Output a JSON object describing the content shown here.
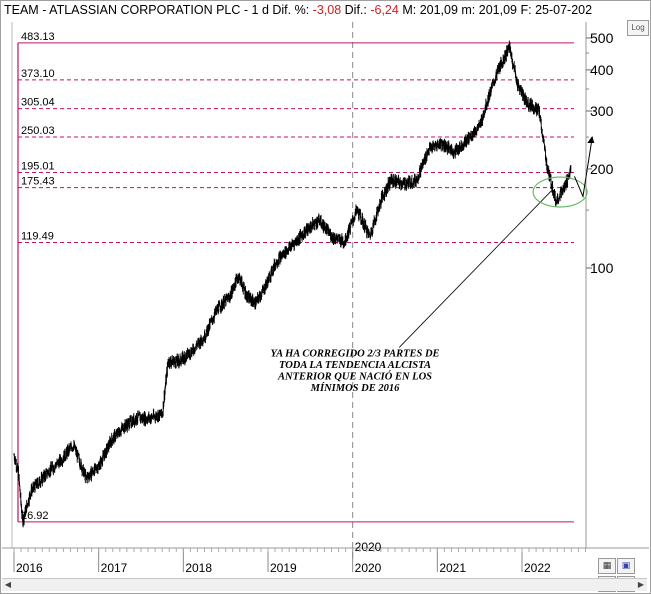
{
  "header": {
    "symbol": "TEAM",
    "sep1": " - ",
    "name": "ATLASSIAN CORPORATION PLC",
    "sep2": " -  ",
    "period": "1 d",
    "dif_pct_label": " Dif. %: ",
    "dif_pct_value": "-3,08",
    "dif_label": " Dif.: ",
    "dif_value": "-6,24",
    "max_label": " M: ",
    "max_value": "201,09",
    "min_label": " m: ",
    "min_value": "201,09",
    "date_label": " F: ",
    "date_value": "25-07-202"
  },
  "log_button": "Log",
  "toolbar_icons": [
    "palette-icon",
    "save-icon",
    "pin-icon",
    "scroll-end-icon"
  ],
  "colors": {
    "level_line": "#c0106e",
    "candles": "#000000",
    "ellipse": "#5cb85c",
    "projection": "#000000"
  },
  "chart_data": {
    "type": "candlestick",
    "y_scale": "log",
    "ylim": [
      10,
      500
    ],
    "y_ticks": [
      100,
      200,
      300,
      400,
      500
    ],
    "x_range": [
      "2016",
      "2022-08"
    ],
    "x_ticks": [
      "2016",
      "2017",
      "2018",
      "2019",
      "2020",
      "2021",
      "2022"
    ],
    "x_marker": "2020",
    "levels": [
      {
        "label": "483.13",
        "value": 483.13,
        "style": "solid"
      },
      {
        "label": "373.10",
        "value": 373.1,
        "style": "dashed"
      },
      {
        "label": "305.04",
        "value": 305.04,
        "style": "dashed"
      },
      {
        "label": "250.03",
        "value": 250.03,
        "style": "dashed"
      },
      {
        "label": "195.01",
        "value": 195.01,
        "style": "dashed"
      },
      {
        "label": "175.43",
        "value": 175.43,
        "style": "dashed"
      },
      {
        "label": "119.49",
        "value": 119.49,
        "style": "dashed"
      },
      {
        "label": "16.92",
        "value": 16.92,
        "style": "solid"
      }
    ],
    "price_path": [
      {
        "date": 2016.0,
        "price": 27
      },
      {
        "date": 2016.05,
        "price": 24
      },
      {
        "date": 2016.1,
        "price": 17
      },
      {
        "date": 2016.2,
        "price": 21
      },
      {
        "date": 2016.4,
        "price": 24
      },
      {
        "date": 2016.55,
        "price": 26
      },
      {
        "date": 2016.7,
        "price": 29
      },
      {
        "date": 2016.85,
        "price": 23
      },
      {
        "date": 2017.0,
        "price": 25
      },
      {
        "date": 2017.15,
        "price": 30
      },
      {
        "date": 2017.3,
        "price": 33
      },
      {
        "date": 2017.45,
        "price": 35
      },
      {
        "date": 2017.6,
        "price": 35
      },
      {
        "date": 2017.75,
        "price": 36
      },
      {
        "date": 2017.82,
        "price": 52
      },
      {
        "date": 2017.95,
        "price": 52
      },
      {
        "date": 2018.1,
        "price": 56
      },
      {
        "date": 2018.25,
        "price": 62
      },
      {
        "date": 2018.4,
        "price": 75
      },
      {
        "date": 2018.55,
        "price": 82
      },
      {
        "date": 2018.65,
        "price": 95
      },
      {
        "date": 2018.75,
        "price": 82
      },
      {
        "date": 2018.85,
        "price": 78
      },
      {
        "date": 2018.95,
        "price": 86
      },
      {
        "date": 2019.1,
        "price": 105
      },
      {
        "date": 2019.25,
        "price": 115
      },
      {
        "date": 2019.45,
        "price": 130
      },
      {
        "date": 2019.6,
        "price": 140
      },
      {
        "date": 2019.75,
        "price": 125
      },
      {
        "date": 2019.9,
        "price": 120
      },
      {
        "date": 2020.05,
        "price": 150
      },
      {
        "date": 2020.2,
        "price": 125
      },
      {
        "date": 2020.35,
        "price": 165
      },
      {
        "date": 2020.45,
        "price": 185
      },
      {
        "date": 2020.6,
        "price": 180
      },
      {
        "date": 2020.75,
        "price": 185
      },
      {
        "date": 2020.9,
        "price": 230
      },
      {
        "date": 2021.05,
        "price": 240
      },
      {
        "date": 2021.2,
        "price": 225
      },
      {
        "date": 2021.35,
        "price": 245
      },
      {
        "date": 2021.5,
        "price": 270
      },
      {
        "date": 2021.62,
        "price": 340
      },
      {
        "date": 2021.72,
        "price": 400
      },
      {
        "date": 2021.85,
        "price": 470
      },
      {
        "date": 2021.95,
        "price": 360
      },
      {
        "date": 2022.05,
        "price": 320
      },
      {
        "date": 2022.2,
        "price": 300
      },
      {
        "date": 2022.3,
        "price": 200
      },
      {
        "date": 2022.4,
        "price": 160
      },
      {
        "date": 2022.5,
        "price": 175
      },
      {
        "date": 2022.58,
        "price": 200
      }
    ],
    "projection_path": [
      {
        "date": 2022.62,
        "price": 190
      },
      {
        "date": 2022.72,
        "price": 165
      },
      {
        "date": 2022.83,
        "price": 250
      }
    ],
    "annotation_lines": [
      "YA HA CORREGIDO 2/3 PARTES DE",
      "TODA LA TENDENCIA ALCISTA",
      "ANTERIOR QUE NACIÓ EN LOS",
      "MÍNIMOS DE 2016"
    ]
  }
}
